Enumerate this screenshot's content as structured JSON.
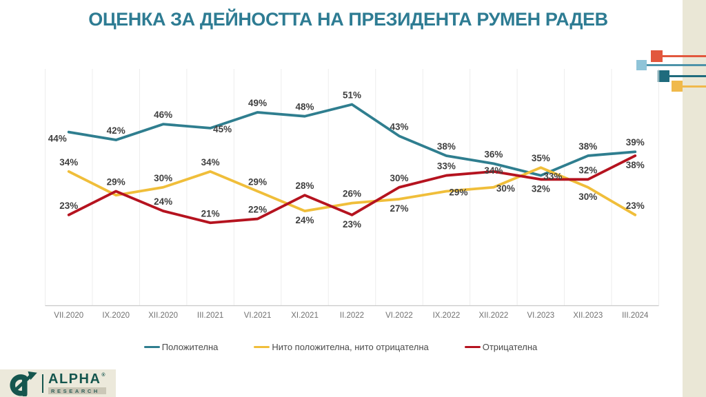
{
  "title": "ОЦЕНКА ЗА ДЕЙНОСТТА НА ПРЕЗИДЕНТА РУМЕН РАДЕВ",
  "chart_data": {
    "type": "line",
    "title": "ОЦЕНКА ЗА ДЕЙНОСТТА НА ПРЕЗИДЕНТА РУМЕН РАДЕВ",
    "categories": [
      "VII.2020",
      "IX.2020",
      "XII.2020",
      "III.2021",
      "VI.2021",
      "XI.2021",
      "II.2022",
      "VI.2022",
      "IX.2022",
      "XII.2022",
      "VI.2023",
      "XII.2023",
      "III.2024"
    ],
    "ylim": [
      0,
      60
    ],
    "grid": "vertical-only",
    "legend_position": "bottom",
    "series": [
      {
        "key": "positive",
        "name": "Положителна",
        "color": "#2F7E8F",
        "values": [
          44,
          42,
          46,
          45,
          49,
          48,
          51,
          43,
          38,
          36,
          33,
          38,
          39
        ],
        "labels": [
          "44%",
          "42%",
          "46%",
          "45%",
          "49%",
          "48%",
          "51%",
          "43%",
          "38%",
          "36%",
          "33%",
          "38%",
          "39%"
        ],
        "label_placements": [
          "left",
          "above",
          "above",
          "right",
          "above",
          "above",
          "above",
          "above",
          "above",
          "above",
          "right",
          "above",
          "above"
        ]
      },
      {
        "key": "neutral",
        "name": "Нито положителна, нито отрицателна",
        "color": "#F0BE3A",
        "values": [
          34,
          28,
          30,
          34,
          29,
          24,
          26,
          27,
          29,
          30,
          35,
          30,
          23
        ],
        "labels": [
          "34%",
          "",
          "30%",
          "34%",
          "29%",
          "24%",
          "26%",
          "27%",
          "29%",
          "30%",
          "35%",
          "30%",
          "23%"
        ],
        "label_placements": [
          "above",
          "none",
          "above",
          "above",
          "above",
          "below",
          "above",
          "below",
          "right",
          "right",
          "above",
          "below",
          "above"
        ]
      },
      {
        "key": "negative",
        "name": "Отрицателна",
        "color": "#B5131F",
        "values": [
          23,
          29,
          24,
          21,
          22,
          28,
          23,
          30,
          33,
          34,
          32,
          32,
          38
        ],
        "labels": [
          "23%",
          "29%",
          "24%",
          "21%",
          "22%",
          "28%",
          "23%",
          "30%",
          "33%",
          "34%",
          "32%",
          "32%",
          "38%"
        ],
        "label_placements": [
          "above",
          "above",
          "above",
          "above",
          "above",
          "above",
          "below",
          "above",
          "above",
          "center",
          "below",
          "above",
          "below"
        ]
      }
    ]
  },
  "logo": {
    "brand": "ALPHA",
    "reg": "®",
    "sub": "RESEARCH"
  },
  "decoration": {
    "square_colors": {
      "light_blue": "#8FC4D8",
      "red": "#E2573D",
      "dark_teal": "#1F6B7D",
      "yellow": "#F0B94B"
    },
    "line_colors": {
      "light_blue": "#4D93A9",
      "red": "#E2573D",
      "dark_teal": "#1F6B7D",
      "yellow": "#F0B94B"
    }
  },
  "colors": {
    "background": "#FFFFFF",
    "side_panel": "#EAE7D6",
    "title_text": "#2E7C93",
    "gridline": "#EDEDED",
    "axis_line": "#C9C9C9",
    "tick_label": "#707070",
    "data_label": "#3F3F3F",
    "legend_text": "#4A4A4A",
    "logo_teal": "#15564E"
  }
}
